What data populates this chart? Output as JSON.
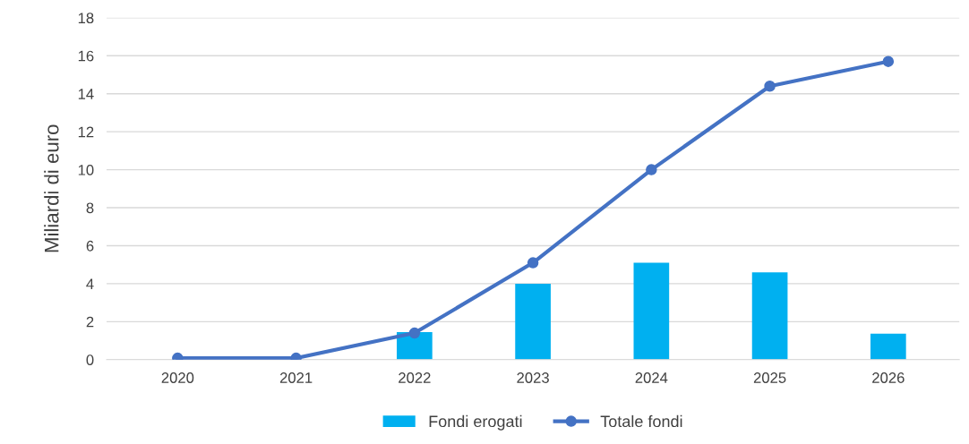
{
  "chart_data": {
    "type": "bar",
    "ylabel": "Miliardi di euro",
    "categories": [
      "2020",
      "2021",
      "2022",
      "2023",
      "2024",
      "2025",
      "2026"
    ],
    "series": [
      {
        "name": "Fondi erogati",
        "color": "#00b0f0",
        "values": [
          null,
          null,
          1.45,
          4.0,
          5.1,
          4.6,
          1.37
        ]
      },
      {
        "name": "Totale fondi",
        "type": "line",
        "color": "#4472c4",
        "values": [
          0.08,
          0.08,
          1.4,
          5.1,
          10.0,
          14.4,
          15.7
        ]
      }
    ],
    "ylim": [
      0,
      18
    ],
    "yticks": [
      0,
      2,
      4,
      6,
      8,
      10,
      12,
      14,
      16,
      18
    ],
    "grid": "y",
    "legend": "bottom",
    "marker": "circle",
    "line_style": "solid"
  }
}
